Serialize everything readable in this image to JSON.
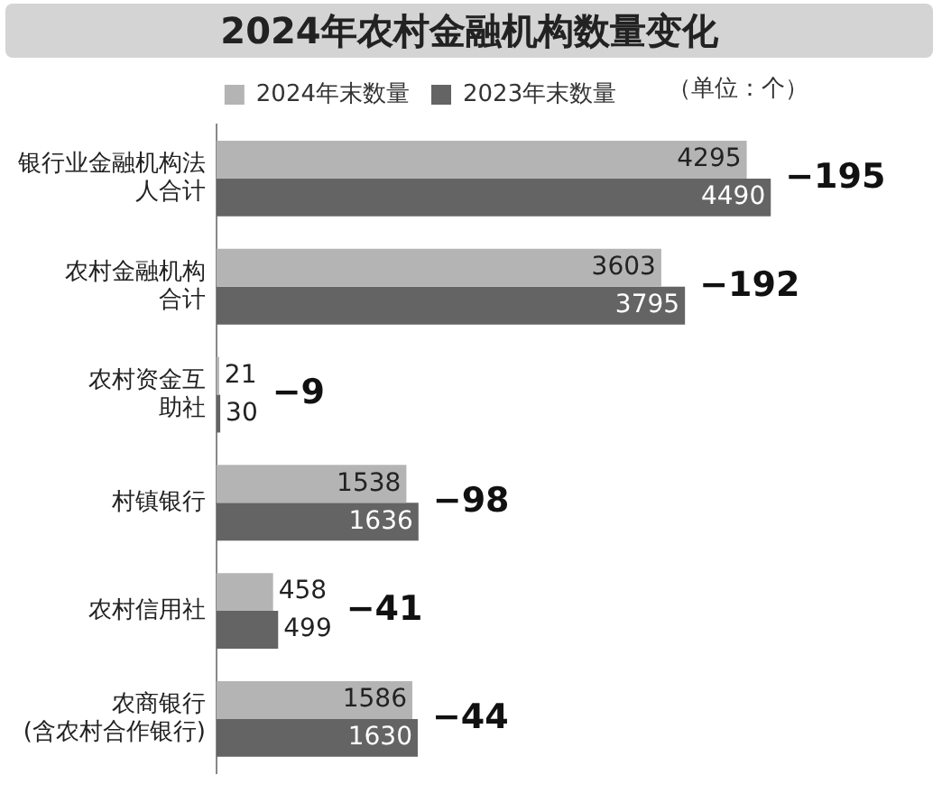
{
  "chart_data": {
    "type": "bar",
    "orientation": "horizontal",
    "title": "2024年农村金融机构数量变化",
    "categories": [
      "银行业金融机构法人合计",
      "农村金融机构合计",
      "农村资金互助社",
      "村镇银行",
      "农村信用社",
      "农商银行(含农村合作银行)"
    ],
    "series": [
      {
        "name": "2024年末数量",
        "color": "#b4b4b4",
        "values": [
          4295,
          3603,
          21,
          1538,
          458,
          1586
        ]
      },
      {
        "name": "2023年末数量",
        "color": "#646464",
        "values": [
          4490,
          3795,
          30,
          1636,
          499,
          1630
        ]
      }
    ],
    "data_labels": true,
    "legend": "top",
    "tick_labels": "y",
    "annotations": [
      "（单位：个）",
      {
        "text": "−195",
        "x": 4490,
        "y": "银行业金融机构法人合计"
      },
      {
        "text": "−192",
        "x": 3795,
        "y": "农村金融机构合计"
      },
      {
        "text": "−9",
        "x": 30,
        "y": "农村资金互助社"
      },
      {
        "text": "−98",
        "x": 1636,
        "y": "村镇银行"
      },
      {
        "text": "−41",
        "x": 499,
        "y": "农村信用社"
      },
      {
        "text": "−44",
        "x": 1630,
        "y": "农商银行(含农村合作银行)"
      }
    ]
  }
}
